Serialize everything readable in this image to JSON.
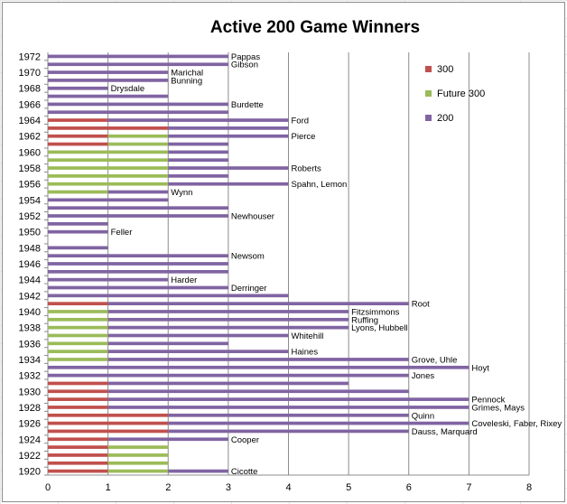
{
  "chart_data": {
    "type": "bar",
    "orientation": "horizontal",
    "stacked": true,
    "title": "Active 200 Game Winners",
    "xlabel": "",
    "ylabel": "",
    "xlim": [
      0,
      8
    ],
    "x_ticks": [
      "0",
      "1",
      "2",
      "3",
      "4",
      "5",
      "6",
      "7",
      "8"
    ],
    "grid": "vertical major gridlines",
    "legend_position": "right",
    "y_tick_labels": [
      "1920",
      "1922",
      "1924",
      "1926",
      "1928",
      "1930",
      "1932",
      "1934",
      "1936",
      "1938",
      "1940",
      "1942",
      "1944",
      "1946",
      "1948",
      "1950",
      "1952",
      "1954",
      "1956",
      "1958",
      "1960",
      "1962",
      "1964",
      "1966",
      "1968",
      "1970",
      "1972"
    ],
    "series": [
      {
        "name": "300",
        "color": "#c0504d"
      },
      {
        "name": "Future 300",
        "color": "#9bbb59"
      },
      {
        "name": "200",
        "color": "#8064a2"
      }
    ],
    "categories": [
      "1920",
      "1921",
      "1922",
      "1923",
      "1924",
      "1925",
      "1926",
      "1927",
      "1928",
      "1929",
      "1930",
      "1931",
      "1932",
      "1933",
      "1934",
      "1935",
      "1936",
      "1937",
      "1938",
      "1939",
      "1940",
      "1941",
      "1942",
      "1943",
      "1944",
      "1945",
      "1946",
      "1947",
      "1948",
      "1949",
      "1950",
      "1951",
      "1952",
      "1953",
      "1954",
      "1955",
      "1956",
      "1957",
      "1958",
      "1959",
      "1960",
      "1961",
      "1962",
      "1963",
      "1964",
      "1965",
      "1966",
      "1967",
      "1968",
      "1969",
      "1970",
      "1971",
      "1972"
    ],
    "data": [
      {
        "year": "1920",
        "v300": 1,
        "future300": 1,
        "v200": 1,
        "label": "Cicotte"
      },
      {
        "year": "1921",
        "v300": 1,
        "future300": 1,
        "v200": 0,
        "label": ""
      },
      {
        "year": "1922",
        "v300": 1,
        "future300": 1,
        "v200": 0,
        "label": ""
      },
      {
        "year": "1923",
        "v300": 1,
        "future300": 1,
        "v200": 0,
        "label": ""
      },
      {
        "year": "1924",
        "v300": 1,
        "future300": 0,
        "v200": 2,
        "label": "Cooper"
      },
      {
        "year": "1925",
        "v300": 2,
        "future300": 0,
        "v200": 4,
        "label": "Dauss, Marquard"
      },
      {
        "year": "1926",
        "v300": 2,
        "future300": 0,
        "v200": 5,
        "label": "Coveleski, Faber, Rixey"
      },
      {
        "year": "1927",
        "v300": 2,
        "future300": 0,
        "v200": 4,
        "label": "Quinn"
      },
      {
        "year": "1928",
        "v300": 1,
        "future300": 0,
        "v200": 6,
        "label": "Grimes, Mays"
      },
      {
        "year": "1929",
        "v300": 1,
        "future300": 0,
        "v200": 6,
        "label": "Pennock"
      },
      {
        "year": "1930",
        "v300": 1,
        "future300": 0,
        "v200": 5,
        "label": ""
      },
      {
        "year": "1931",
        "v300": 1,
        "future300": 0,
        "v200": 4,
        "label": ""
      },
      {
        "year": "1932",
        "v300": 0,
        "future300": 0,
        "v200": 6,
        "label": "Jones"
      },
      {
        "year": "1933",
        "v300": 0,
        "future300": 0,
        "v200": 7,
        "label": "Hoyt"
      },
      {
        "year": "1934",
        "v300": 0,
        "future300": 1,
        "v200": 5,
        "label": "Grove, Uhle"
      },
      {
        "year": "1935",
        "v300": 0,
        "future300": 1,
        "v200": 3,
        "label": "Haines"
      },
      {
        "year": "1936",
        "v300": 0,
        "future300": 1,
        "v200": 2,
        "label": ""
      },
      {
        "year": "1937",
        "v300": 0,
        "future300": 1,
        "v200": 3,
        "label": "Whitehill"
      },
      {
        "year": "1938",
        "v300": 0,
        "future300": 1,
        "v200": 4,
        "label": "Lyons, Hubbell"
      },
      {
        "year": "1939",
        "v300": 0,
        "future300": 1,
        "v200": 4,
        "label": "Ruffing"
      },
      {
        "year": "1940",
        "v300": 0,
        "future300": 1,
        "v200": 4,
        "label": "Fitzsimmons"
      },
      {
        "year": "1941",
        "v300": 1,
        "future300": 0,
        "v200": 5,
        "label": "Root"
      },
      {
        "year": "1942",
        "v300": 0,
        "future300": 0,
        "v200": 4,
        "label": ""
      },
      {
        "year": "1943",
        "v300": 0,
        "future300": 0,
        "v200": 3,
        "label": "Derringer"
      },
      {
        "year": "1944",
        "v300": 0,
        "future300": 0,
        "v200": 2,
        "label": "Harder"
      },
      {
        "year": "1945",
        "v300": 0,
        "future300": 0,
        "v200": 3,
        "label": ""
      },
      {
        "year": "1946",
        "v300": 0,
        "future300": 0,
        "v200": 3,
        "label": ""
      },
      {
        "year": "1947",
        "v300": 0,
        "future300": 0,
        "v200": 3,
        "label": "Newsom"
      },
      {
        "year": "1948",
        "v300": 0,
        "future300": 0,
        "v200": 1,
        "label": ""
      },
      {
        "year": "1949",
        "v300": 0,
        "future300": 0,
        "v200": 0,
        "label": ""
      },
      {
        "year": "1950",
        "v300": 0,
        "future300": 0,
        "v200": 1,
        "label": "Feller"
      },
      {
        "year": "1951",
        "v300": 0,
        "future300": 0,
        "v200": 1,
        "label": ""
      },
      {
        "year": "1952",
        "v300": 0,
        "future300": 0,
        "v200": 3,
        "label": "Newhouser"
      },
      {
        "year": "1953",
        "v300": 0,
        "future300": 0,
        "v200": 3,
        "label": ""
      },
      {
        "year": "1954",
        "v300": 0,
        "future300": 0,
        "v200": 2,
        "label": ""
      },
      {
        "year": "1955",
        "v300": 0,
        "future300": 1,
        "v200": 1,
        "label": "Wynn"
      },
      {
        "year": "1956",
        "v300": 0,
        "future300": 2,
        "v200": 2,
        "label": "Spahn, Lemon"
      },
      {
        "year": "1957",
        "v300": 0,
        "future300": 2,
        "v200": 1,
        "label": ""
      },
      {
        "year": "1958",
        "v300": 0,
        "future300": 2,
        "v200": 2,
        "label": "Roberts"
      },
      {
        "year": "1959",
        "v300": 0,
        "future300": 2,
        "v200": 1,
        "label": ""
      },
      {
        "year": "1960",
        "v300": 0,
        "future300": 2,
        "v200": 1,
        "label": ""
      },
      {
        "year": "1961",
        "v300": 1,
        "future300": 1,
        "v200": 1,
        "label": ""
      },
      {
        "year": "1962",
        "v300": 1,
        "future300": 1,
        "v200": 2,
        "label": "Pierce"
      },
      {
        "year": "1963",
        "v300": 2,
        "future300": 0,
        "v200": 2,
        "label": ""
      },
      {
        "year": "1964",
        "v300": 1,
        "future300": 0,
        "v200": 3,
        "label": "Ford"
      },
      {
        "year": "1965",
        "v300": 0,
        "future300": 0,
        "v200": 3,
        "label": ""
      },
      {
        "year": "1966",
        "v300": 0,
        "future300": 0,
        "v200": 3,
        "label": "Burdette"
      },
      {
        "year": "1967",
        "v300": 0,
        "future300": 0,
        "v200": 2,
        "label": ""
      },
      {
        "year": "1968",
        "v300": 0,
        "future300": 0,
        "v200": 1,
        "label": "Drysdale"
      },
      {
        "year": "1969",
        "v300": 0,
        "future300": 0,
        "v200": 2,
        "label": "Bunning"
      },
      {
        "year": "1970",
        "v300": 0,
        "future300": 0,
        "v200": 2,
        "label": "Marichal"
      },
      {
        "year": "1971",
        "v300": 0,
        "future300": 0,
        "v200": 3,
        "label": "Gibson"
      },
      {
        "year": "1972",
        "v300": 0,
        "future300": 0,
        "v200": 3,
        "label": "Pappas"
      }
    ]
  }
}
